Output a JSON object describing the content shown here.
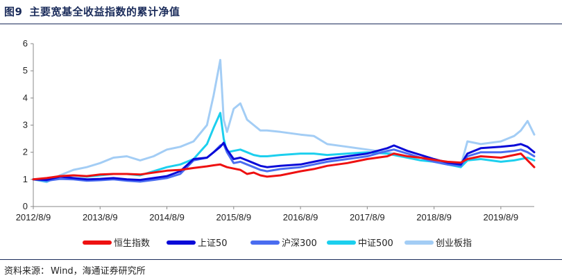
{
  "header": {
    "figure_no": "图9",
    "title": "主要宽基全收益指数的累计净值"
  },
  "footer": {
    "source_label": "资料来源：",
    "source_text": "Wind，海通证券研究所"
  },
  "colors": {
    "hsi": "#ee1111",
    "sh50": "#0a0ad8",
    "hs300": "#4a6cf0",
    "zz500": "#1ccfee",
    "cyb": "#a3cdf5",
    "axis": "#888888"
  },
  "chart_data": {
    "type": "line",
    "title": "主要宽基全收益指数的累计净值",
    "xlabel": "",
    "ylabel": "",
    "ylim": [
      0,
      6
    ],
    "yticks": [
      0,
      1,
      2,
      3,
      4,
      5,
      6
    ],
    "xlim": [
      2012.6,
      2020.1
    ],
    "xticks": [
      2012.6,
      2013.6,
      2014.6,
      2015.6,
      2016.6,
      2017.6,
      2018.6,
      2019.6
    ],
    "xtick_labels": [
      "2012/8/9",
      "2013/8/9",
      "2014/8/9",
      "2015/8/9",
      "2016/8/9",
      "2017/8/9",
      "2018/8/9",
      "2019/8/9"
    ],
    "legend_position": "bottom",
    "grid": false,
    "x": [
      2012.6,
      2012.8,
      2013.0,
      2013.2,
      2013.4,
      2013.6,
      2013.8,
      2014.0,
      2014.2,
      2014.4,
      2014.6,
      2014.8,
      2015.0,
      2015.2,
      2015.3,
      2015.4,
      2015.45,
      2015.5,
      2015.6,
      2015.7,
      2015.8,
      2015.9,
      2016.0,
      2016.1,
      2016.3,
      2016.6,
      2016.8,
      2017.0,
      2017.3,
      2017.6,
      2017.9,
      2018.0,
      2018.2,
      2018.4,
      2018.6,
      2018.8,
      2019.0,
      2019.1,
      2019.3,
      2019.6,
      2019.8,
      2019.9,
      2020.0,
      2020.1
    ],
    "series": [
      {
        "name": "恒生指数",
        "color_key": "hsi",
        "values": [
          1.0,
          1.05,
          1.12,
          1.15,
          1.12,
          1.18,
          1.2,
          1.2,
          1.18,
          1.25,
          1.32,
          1.35,
          1.42,
          1.48,
          1.52,
          1.55,
          1.5,
          1.45,
          1.4,
          1.35,
          1.2,
          1.25,
          1.15,
          1.1,
          1.15,
          1.3,
          1.38,
          1.5,
          1.6,
          1.75,
          1.85,
          1.95,
          1.85,
          1.8,
          1.72,
          1.65,
          1.62,
          1.75,
          1.85,
          1.8,
          1.9,
          1.95,
          1.7,
          1.45
        ]
      },
      {
        "name": "上证50",
        "color_key": "sh50",
        "values": [
          1.0,
          0.98,
          1.1,
          1.05,
          1.0,
          1.02,
          1.05,
          1.0,
          0.98,
          1.05,
          1.12,
          1.3,
          1.75,
          1.8,
          2.0,
          2.2,
          2.35,
          2.1,
          1.75,
          1.8,
          1.7,
          1.6,
          1.5,
          1.45,
          1.5,
          1.55,
          1.65,
          1.75,
          1.85,
          1.95,
          2.15,
          2.25,
          2.05,
          1.9,
          1.75,
          1.62,
          1.55,
          1.95,
          2.15,
          2.2,
          2.25,
          2.3,
          2.2,
          2.0
        ]
      },
      {
        "name": "沪深300",
        "color_key": "hs300",
        "values": [
          1.0,
          0.95,
          1.02,
          1.0,
          0.95,
          0.97,
          1.0,
          0.95,
          0.92,
          0.98,
          1.05,
          1.2,
          1.7,
          1.8,
          2.0,
          2.25,
          2.3,
          2.0,
          1.6,
          1.65,
          1.55,
          1.45,
          1.35,
          1.3,
          1.38,
          1.45,
          1.55,
          1.65,
          1.75,
          1.85,
          2.05,
          2.1,
          1.95,
          1.8,
          1.65,
          1.55,
          1.5,
          1.85,
          2.0,
          2.0,
          2.05,
          2.1,
          2.0,
          1.85
        ]
      },
      {
        "name": "中证500",
        "color_key": "zz500",
        "values": [
          1.0,
          0.93,
          1.1,
          1.15,
          1.1,
          1.15,
          1.2,
          1.2,
          1.15,
          1.3,
          1.45,
          1.55,
          1.75,
          2.3,
          2.9,
          3.45,
          2.5,
          2.0,
          2.05,
          2.1,
          2.0,
          1.9,
          1.85,
          1.85,
          1.9,
          1.95,
          1.95,
          1.9,
          1.95,
          2.0,
          1.95,
          1.9,
          1.8,
          1.7,
          1.65,
          1.55,
          1.45,
          1.7,
          1.75,
          1.65,
          1.7,
          1.75,
          1.8,
          1.7
        ]
      },
      {
        "name": "创业板指",
        "color_key": "cyb",
        "values": [
          1.0,
          0.9,
          1.15,
          1.35,
          1.45,
          1.6,
          1.8,
          1.85,
          1.7,
          1.85,
          2.1,
          2.2,
          2.4,
          3.0,
          4.1,
          5.4,
          3.2,
          2.75,
          3.6,
          3.8,
          3.2,
          3.0,
          2.8,
          2.8,
          2.75,
          2.65,
          2.6,
          2.3,
          2.2,
          2.1,
          2.0,
          1.95,
          1.85,
          1.8,
          1.75,
          1.6,
          1.5,
          2.4,
          2.3,
          2.4,
          2.6,
          2.8,
          3.15,
          2.65
        ]
      }
    ]
  }
}
